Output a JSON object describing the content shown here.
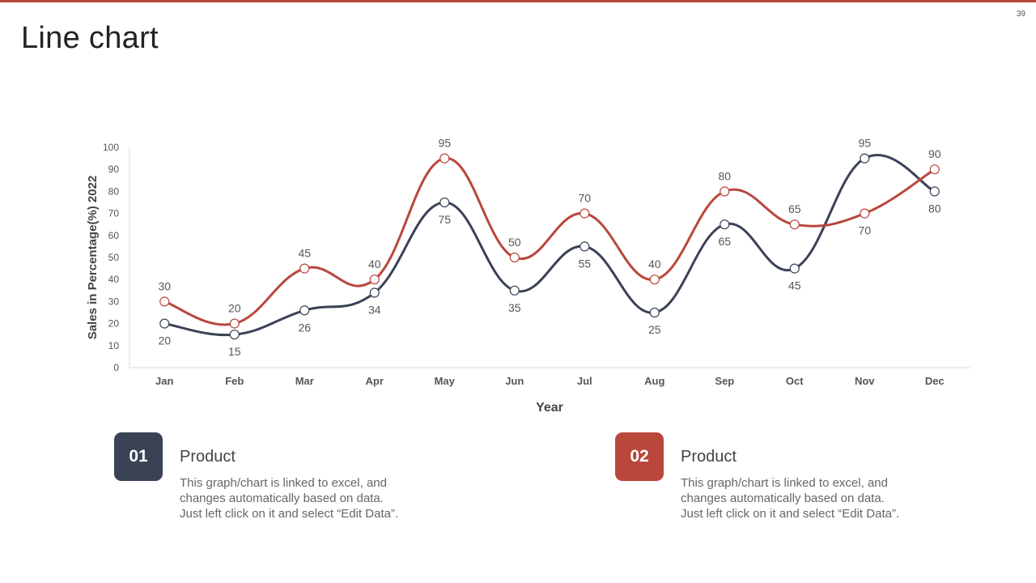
{
  "page": {
    "title": "Line chart",
    "number": "39",
    "accent": "#b9473c"
  },
  "chart_data": {
    "type": "line",
    "categories": [
      "Jan",
      "Feb",
      "Mar",
      "Apr",
      "May",
      "Jun",
      "Jul",
      "Aug",
      "Sep",
      "Oct",
      "Nov",
      "Dec"
    ],
    "series": [
      {
        "name": "Product 01",
        "color": "#3a4256",
        "values": [
          20,
          15,
          26,
          34,
          75,
          35,
          55,
          25,
          65,
          45,
          95,
          80
        ]
      },
      {
        "name": "Product 02",
        "color": "#b9473c",
        "values": [
          30,
          20,
          45,
          40,
          95,
          50,
          70,
          40,
          80,
          65,
          70,
          90
        ]
      }
    ],
    "yticks": [
      0,
      10,
      20,
      30,
      40,
      50,
      60,
      70,
      80,
      90,
      100
    ],
    "ylim": [
      0,
      100
    ],
    "xlabel": "Year",
    "ylabel": "Sales in Percentage(%) 2022",
    "grid": false,
    "smooth": true
  },
  "cards": [
    {
      "number": "01",
      "title": "Product",
      "color": "#3a4256",
      "lines": [
        "This graph/chart is linked to excel, and",
        "changes automatically based on data.",
        "Just left click on it and select “Edit Data”."
      ]
    },
    {
      "number": "02",
      "title": "Product",
      "color": "#b9473c",
      "lines": [
        "This graph/chart is linked to excel, and",
        "changes automatically based on data.",
        "Just left click on it and select “Edit Data”."
      ]
    }
  ]
}
